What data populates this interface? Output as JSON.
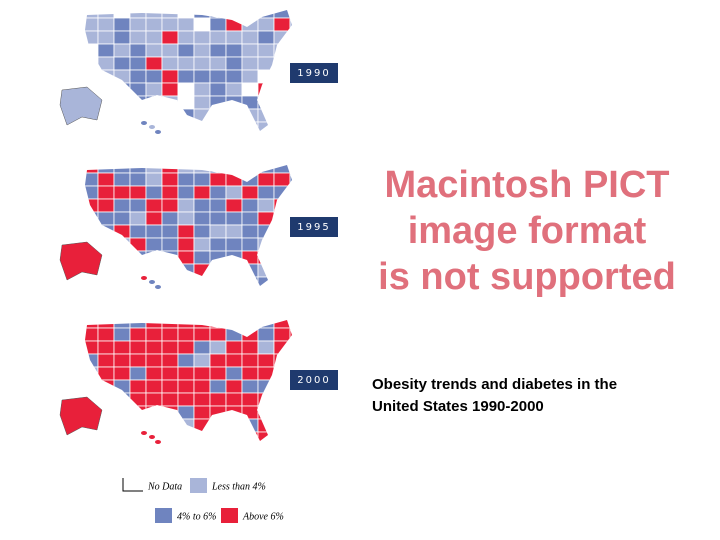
{
  "maps": [
    {
      "year": "1990"
    },
    {
      "year": "1995"
    },
    {
      "year": "2000"
    }
  ],
  "placeholder": {
    "lines": [
      "Macintosh PICT",
      "image format",
      "is not supported"
    ]
  },
  "caption": {
    "lines": [
      "Obesity trends and diabetes in the",
      "United States 1990-2000"
    ]
  },
  "legend": [
    {
      "label": "No Data"
    },
    {
      "label": "Less than 4%"
    },
    {
      "label": "4% to 6%"
    },
    {
      "label": "Above 6%"
    }
  ]
}
